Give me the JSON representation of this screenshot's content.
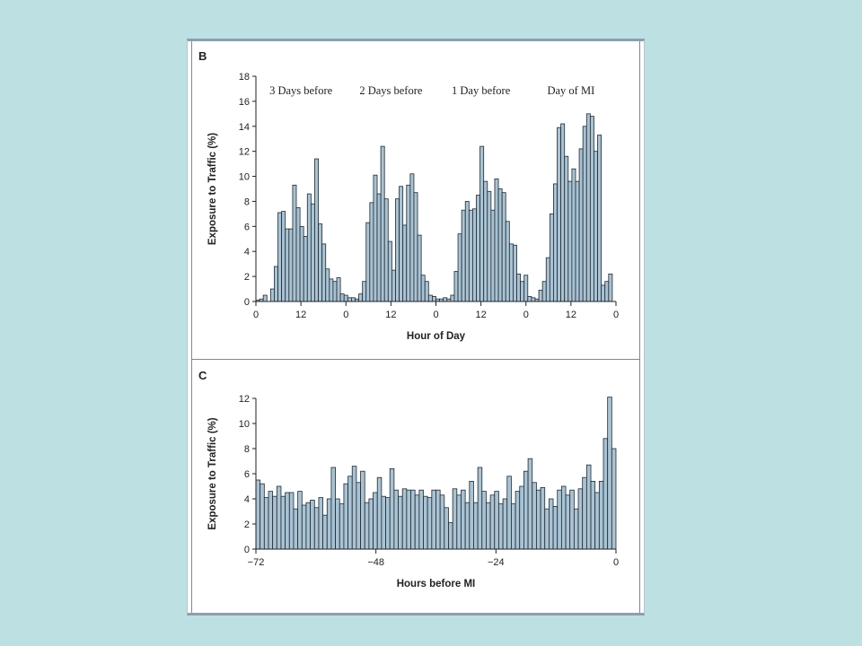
{
  "colors": {
    "background": "#bde0e3",
    "panel": "#ffffff",
    "bar_fill": "#a9c3d4",
    "bar_stroke": "#1e2a30"
  },
  "chart_data": [
    {
      "panel": "B",
      "type": "bar",
      "xlabel": "Hour of Day",
      "ylabel": "Exposure to Traffic (%)",
      "ylim": [
        0,
        18
      ],
      "yticks": [
        "0",
        "2",
        "4",
        "6",
        "8",
        "10",
        "12",
        "14",
        "16",
        "18"
      ],
      "xtick_labels": [
        "0",
        "12",
        "0",
        "12",
        "0",
        "12",
        "0",
        "12",
        "0"
      ],
      "annotations": [
        "3 Days before",
        "2 Days before",
        "1 Day before",
        "Day of MI"
      ],
      "values": [
        0.1,
        0.2,
        0.5,
        0.0,
        1.0,
        2.8,
        7.1,
        7.2,
        5.8,
        5.8,
        9.3,
        7.5,
        6.0,
        5.2,
        8.6,
        7.8,
        11.4,
        6.2,
        4.6,
        2.6,
        1.8,
        1.6,
        1.9,
        0.6,
        0.5,
        0.3,
        0.3,
        0.2,
        0.6,
        1.6,
        6.3,
        7.9,
        10.1,
        8.6,
        12.4,
        8.2,
        4.8,
        2.5,
        8.2,
        9.2,
        6.1,
        9.3,
        10.2,
        8.7,
        5.3,
        2.1,
        1.6,
        0.5,
        0.4,
        0.2,
        0.2,
        0.3,
        0.2,
        0.5,
        2.4,
        5.4,
        7.3,
        8.0,
        7.3,
        7.4,
        8.5,
        12.4,
        9.6,
        8.8,
        7.3,
        9.8,
        9.0,
        8.7,
        6.4,
        4.6,
        4.5,
        2.2,
        1.6,
        2.1,
        0.4,
        0.3,
        0.2,
        0.9,
        1.6,
        3.5,
        7.0,
        9.4,
        13.9,
        14.2,
        11.6,
        9.6,
        10.6,
        9.6,
        12.2,
        14.0,
        15.0,
        14.8,
        12.0,
        13.3,
        1.3,
        1.6,
        2.2,
        0.0
      ]
    },
    {
      "panel": "C",
      "type": "bar",
      "xlabel": "Hours before MI",
      "ylabel": "Exposure to Traffic (%)",
      "ylim": [
        0,
        12
      ],
      "yticks": [
        "0",
        "2",
        "4",
        "6",
        "8",
        "10",
        "12"
      ],
      "xtick_labels": [
        "−72",
        "−48",
        "−24",
        "0"
      ],
      "x_range": [
        -72,
        0
      ],
      "values": [
        5.5,
        5.2,
        4.1,
        4.6,
        4.2,
        5.0,
        4.2,
        4.5,
        4.5,
        3.2,
        4.6,
        3.5,
        3.7,
        3.9,
        3.3,
        4.1,
        2.7,
        4.0,
        6.5,
        4.0,
        3.6,
        5.2,
        5.8,
        6.6,
        5.3,
        6.2,
        3.7,
        4.0,
        4.5,
        5.7,
        4.2,
        4.1,
        6.4,
        4.7,
        4.2,
        4.8,
        4.7,
        4.7,
        4.3,
        4.7,
        4.2,
        4.1,
        4.7,
        4.7,
        4.3,
        3.3,
        2.1,
        4.8,
        4.3,
        4.7,
        3.7,
        5.4,
        3.7,
        6.5,
        4.6,
        3.7,
        4.3,
        4.6,
        3.6,
        4.0,
        5.8,
        3.6,
        4.6,
        5.0,
        6.2,
        7.2,
        5.3,
        4.7,
        4.9,
        3.2,
        4.0,
        3.4,
        4.7,
        5.0,
        4.3,
        4.7,
        3.2,
        4.8,
        5.7,
        6.7,
        5.4,
        4.5,
        5.4,
        8.8,
        12.1,
        8.0
      ]
    }
  ]
}
